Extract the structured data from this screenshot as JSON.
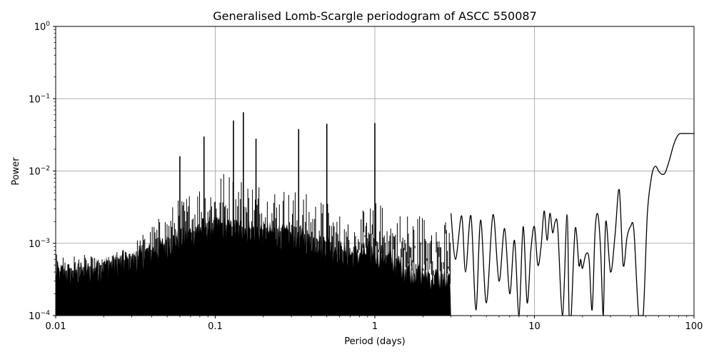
{
  "figure": {
    "title": "Generalised Lomb-Scargle periodogram of ASCC 550087",
    "xlabel": "Period (days)",
    "ylabel": "Power",
    "line_color": "#000000",
    "grid_color": "#b0b0b0"
  },
  "chart_data": {
    "type": "line",
    "title": "Generalised Lomb-Scargle periodogram of ASCC 550087",
    "xlabel": "Period (days)",
    "ylabel": "Power",
    "xscale": "log",
    "yscale": "log",
    "xlim": [
      0.01,
      100
    ],
    "ylim": [
      0.0001,
      1
    ],
    "grid": true,
    "legend": null,
    "x_ticks": [
      "0.01",
      "0.1",
      "1",
      "10",
      "100"
    ],
    "y_ticks": [
      "10^-4",
      "10^-3",
      "10^-2",
      "10^-1",
      "10^0"
    ],
    "noise_envelope": {
      "description": "Dense forest of aliased peaks for periods 0.01-3 d; floor below 1e-4",
      "x": [
        0.01,
        0.015,
        0.02,
        0.03,
        0.05,
        0.08,
        0.1,
        0.2,
        0.3,
        0.5,
        0.7,
        1.0,
        1.5,
        2.0,
        3.0
      ],
      "upper_power": [
        0.0007,
        0.0007,
        0.0006,
        0.001,
        0.003,
        0.008,
        0.012,
        0.008,
        0.006,
        0.004,
        0.002,
        0.004,
        0.003,
        0.003,
        0.002
      ],
      "dense_fill_top": [
        0.0004,
        0.0004,
        0.0005,
        0.0006,
        0.001,
        0.0016,
        0.0018,
        0.0015,
        0.0013,
        0.001,
        0.0007,
        0.0008,
        0.0005,
        0.0004,
        0.0003
      ]
    },
    "prominent_peaks": [
      {
        "period": 0.15,
        "power": 0.065
      },
      {
        "period": 0.13,
        "power": 0.05
      },
      {
        "period": 0.333,
        "power": 0.038
      },
      {
        "period": 0.5,
        "power": 0.045
      },
      {
        "period": 1.0,
        "power": 0.046
      },
      {
        "period": 0.085,
        "power": 0.03
      },
      {
        "period": 0.18,
        "power": 0.028
      },
      {
        "period": 0.06,
        "power": 0.016
      }
    ],
    "long_period_curve": {
      "x": [
        3.0,
        3.2,
        3.5,
        3.7,
        4.0,
        4.3,
        4.6,
        5.0,
        5.5,
        6.0,
        6.5,
        7.0,
        7.5,
        8.0,
        8.5,
        9.0,
        9.5,
        10.0,
        10.5,
        11.0,
        11.5,
        12.0,
        12.5,
        13.0,
        13.5,
        14.0,
        15.0,
        16.0,
        16.5,
        17.0,
        18.0,
        19.0,
        19.5,
        20.0,
        21.0,
        22.0,
        23.0,
        24.0,
        25.0,
        26.0,
        27.0,
        28.0,
        30.0,
        32.0,
        34.0,
        36.0,
        38.0,
        40.0,
        42.0,
        45.0,
        48.0,
        51.0,
        54.0,
        56.0,
        58.0,
        60.0,
        63.0,
        66.0,
        70.0,
        75.0,
        80.0,
        85.0,
        90.0,
        95.0,
        100.0
      ],
      "power": [
        0.0026,
        0.0006,
        0.0024,
        0.0004,
        0.0024,
        0.00012,
        0.0021,
        0.00015,
        0.0025,
        0.0003,
        0.0016,
        0.0002,
        0.0011,
        0.0001,
        0.0017,
        0.00015,
        0.0008,
        0.0017,
        0.0005,
        0.0009,
        0.0028,
        0.0011,
        0.0026,
        0.0014,
        0.002,
        0.0016,
        0.0001,
        0.0025,
        0.0001,
        0.0001,
        0.0016,
        0.0005,
        0.0006,
        0.00045,
        0.0007,
        0.0006,
        0.00012,
        0.0015,
        0.0025,
        0.0008,
        0.0001,
        0.002,
        0.0004,
        0.0013,
        0.0055,
        0.0005,
        0.0012,
        0.0017,
        0.0015,
        0.0001,
        0.0001,
        0.0025,
        0.008,
        0.011,
        0.0115,
        0.01,
        0.009,
        0.0095,
        0.014,
        0.024,
        0.032,
        0.033,
        0.033,
        0.033,
        0.033
      ]
    }
  }
}
